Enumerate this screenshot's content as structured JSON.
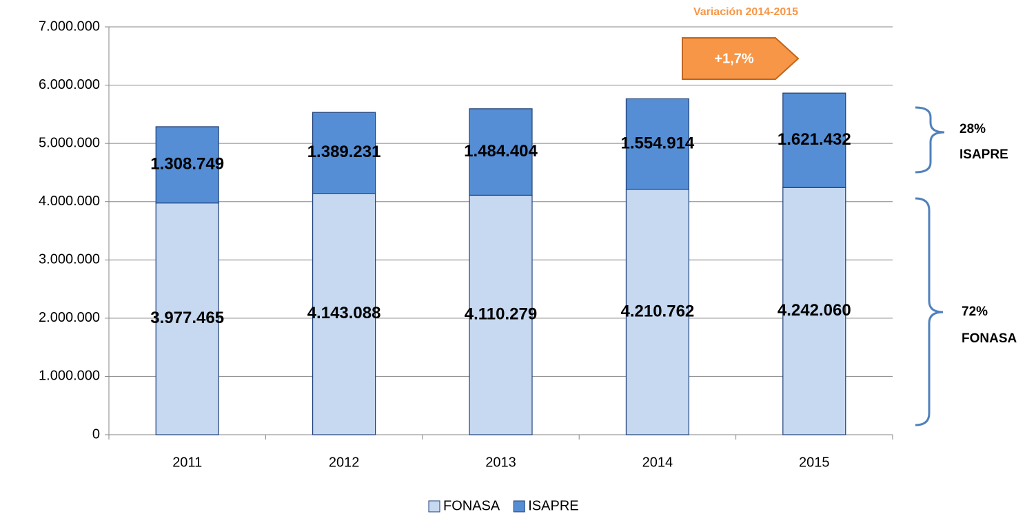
{
  "chart_data": {
    "type": "stacked_bar",
    "categories": [
      "2011",
      "2012",
      "2013",
      "2014",
      "2015"
    ],
    "series": [
      {
        "name": "FONASA",
        "color": "#c6d9f1",
        "values": [
          3977465,
          4143088,
          4110279,
          4210762,
          4242060
        ],
        "value_labels": [
          "3.977.465",
          "4.143.088",
          "4.110.279",
          "4.210.762",
          "4.242.060"
        ]
      },
      {
        "name": "ISAPRE",
        "color": "#558ed5",
        "values": [
          1308749,
          1389231,
          1484404,
          1554914,
          1621432
        ],
        "value_labels": [
          "1.308.749",
          "1.389.231",
          "1.484.404",
          "1.554.914",
          "1.621.432"
        ]
      }
    ],
    "ylim": [
      0,
      7000000
    ],
    "yticks": [
      0,
      {
        "value": 1000000,
        "label": "1.000.000"
      },
      {
        "value": 2000000,
        "label": "2.000.000"
      },
      {
        "value": 3000000,
        "label": "3.000.000"
      },
      {
        "value": 4000000,
        "label": "4.000.000"
      },
      {
        "value": 5000000,
        "label": "5.000.000"
      },
      {
        "value": 6000000,
        "label": "6.000.000"
      },
      {
        "value": 7000000,
        "label": "7.000.000"
      }
    ],
    "grid": true,
    "legend": "bottom",
    "variation_title": "Variación 2014-2015",
    "variation_label": "+1,7%",
    "brace_labels": [
      [
        "28%",
        "ISAPRE"
      ],
      [
        "72%",
        "FONASA"
      ]
    ]
  }
}
